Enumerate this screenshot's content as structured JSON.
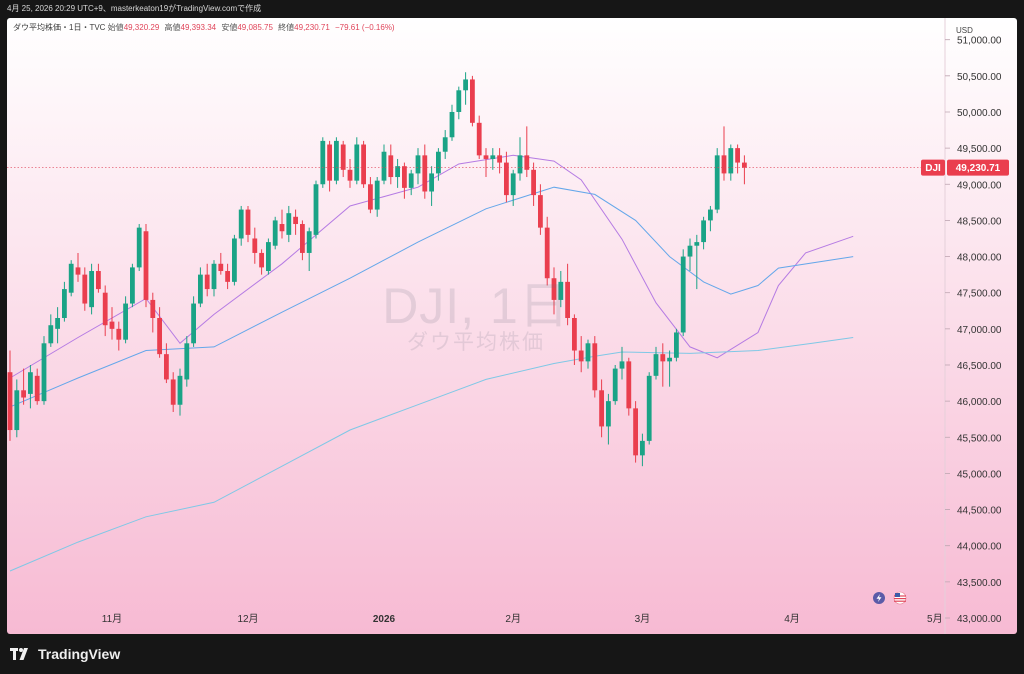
{
  "header": {
    "caption": "4月 25, 2026 20:29 UTC+9、masterkeaton19がTradingView.comで作成"
  },
  "legend": {
    "symbol": "ダウ平均株価・1日・TVC",
    "open_label": "始値",
    "open": "49,320.29",
    "high_label": "高値",
    "high": "49,393.34",
    "low_label": "安値",
    "low": "49,085.75",
    "close_label": "終値",
    "close": "49,230.71",
    "change": "−79.61 (−0.16%)"
  },
  "watermark": {
    "title": "DJI, 1日",
    "subtitle": "ダウ平均株価"
  },
  "price_tag": {
    "symbol": "DJI",
    "value": "49,230.71"
  },
  "brand": {
    "name": "TradingView"
  },
  "icons": [
    "lightning-icon",
    "us-flag-icon",
    "tradingview-logo-icon"
  ],
  "colors": {
    "up": "#1aa386",
    "down": "#ea3e4e",
    "ma_short": "#b57be3",
    "ma_mid": "#64a7ea",
    "ma_long": "#7fc8e6"
  },
  "chart_data": {
    "type": "candlestick",
    "currency": "USD",
    "y_axis": {
      "range": [
        43000,
        51300
      ],
      "ticks": [
        "43,000.00",
        "43,500.00",
        "44,000.00",
        "44,500.00",
        "45,000.00",
        "45,500.00",
        "46,000.00",
        "46,500.00",
        "47,000.00",
        "47,500.00",
        "48,000.00",
        "48,500.00",
        "49,000.00",
        "49,500.00",
        "50,000.00",
        "50,500.00",
        "51,000.00"
      ]
    },
    "x_axis": {
      "labels": [
        {
          "text": "11月",
          "index": 15
        },
        {
          "text": "12月",
          "index": 35
        },
        {
          "text": "2026",
          "index": 55
        },
        {
          "text": "2月",
          "index": 74
        },
        {
          "text": "3月",
          "index": 93
        },
        {
          "text": "4月",
          "index": 115
        },
        {
          "text": "5月",
          "index": 136
        }
      ]
    },
    "grid": false,
    "candles": [
      [
        46400,
        46700,
        45450,
        45600
      ],
      [
        45600,
        46300,
        45500,
        46150
      ],
      [
        46150,
        46450,
        45950,
        46050
      ],
      [
        46100,
        46500,
        45900,
        46400
      ],
      [
        46350,
        46450,
        45950,
        46000
      ],
      [
        46000,
        46900,
        45950,
        46800
      ],
      [
        46800,
        47200,
        46750,
        47050
      ],
      [
        47000,
        47300,
        46800,
        47150
      ],
      [
        47150,
        47650,
        47100,
        47550
      ],
      [
        47500,
        47950,
        47450,
        47900
      ],
      [
        47850,
        48050,
        47650,
        47750
      ],
      [
        47750,
        47850,
        47250,
        47350
      ],
      [
        47300,
        47900,
        47200,
        47800
      ],
      [
        47800,
        47900,
        47500,
        47550
      ],
      [
        47500,
        47600,
        46900,
        47050
      ],
      [
        47100,
        47300,
        46850,
        47000
      ],
      [
        47000,
        47100,
        46700,
        46850
      ],
      [
        46850,
        47450,
        46800,
        47350
      ],
      [
        47350,
        47900,
        47300,
        47850
      ],
      [
        47850,
        48450,
        47800,
        48400
      ],
      [
        48350,
        48450,
        47300,
        47400
      ],
      [
        47400,
        47500,
        46950,
        47150
      ],
      [
        47150,
        47300,
        46600,
        46650
      ],
      [
        46650,
        46800,
        46250,
        46300
      ],
      [
        46300,
        46400,
        45850,
        45950
      ],
      [
        45950,
        46450,
        45800,
        46350
      ],
      [
        46300,
        46900,
        46200,
        46800
      ],
      [
        46800,
        47450,
        46750,
        47350
      ],
      [
        47350,
        47850,
        47300,
        47750
      ],
      [
        47750,
        47900,
        47450,
        47550
      ],
      [
        47550,
        47950,
        47450,
        47900
      ],
      [
        47900,
        48050,
        47750,
        47800
      ],
      [
        47800,
        47900,
        47550,
        47650
      ],
      [
        47650,
        48300,
        47600,
        48250
      ],
      [
        48250,
        48700,
        48150,
        48650
      ],
      [
        48650,
        48700,
        48200,
        48300
      ],
      [
        48250,
        48400,
        47900,
        48050
      ],
      [
        48050,
        48100,
        47750,
        47850
      ],
      [
        47800,
        48250,
        47750,
        48200
      ],
      [
        48150,
        48550,
        48100,
        48500
      ],
      [
        48450,
        48650,
        48250,
        48350
      ],
      [
        48300,
        48700,
        48200,
        48600
      ],
      [
        48550,
        48650,
        48300,
        48450
      ],
      [
        48450,
        48500,
        47950,
        48050
      ],
      [
        48050,
        48400,
        47800,
        48350
      ],
      [
        48300,
        49050,
        48250,
        49000
      ],
      [
        49000,
        49650,
        48950,
        49600
      ],
      [
        49550,
        49600,
        48900,
        49050
      ],
      [
        49050,
        49650,
        49000,
        49600
      ],
      [
        49550,
        49600,
        49100,
        49200
      ],
      [
        49200,
        49350,
        48950,
        49050
      ],
      [
        49050,
        49650,
        49000,
        49550
      ],
      [
        49550,
        49600,
        48950,
        49000
      ],
      [
        49000,
        49100,
        48600,
        48650
      ],
      [
        48650,
        49100,
        48550,
        49050
      ],
      [
        49050,
        49550,
        49000,
        49450
      ],
      [
        49400,
        49550,
        49000,
        49100
      ],
      [
        49100,
        49350,
        48950,
        49250
      ],
      [
        49250,
        49300,
        48800,
        48950
      ],
      [
        48950,
        49200,
        48850,
        49150
      ],
      [
        49150,
        49500,
        49000,
        49400
      ],
      [
        49400,
        49550,
        48800,
        48900
      ],
      [
        48900,
        49250,
        48700,
        49150
      ],
      [
        49150,
        49500,
        49050,
        49450
      ],
      [
        49450,
        49750,
        49350,
        49650
      ],
      [
        49650,
        50100,
        49600,
        50000
      ],
      [
        50000,
        50350,
        49900,
        50300
      ],
      [
        50300,
        50550,
        50100,
        50450
      ],
      [
        50450,
        50500,
        49800,
        49850
      ],
      [
        49850,
        49950,
        49350,
        49400
      ],
      [
        49400,
        49500,
        49100,
        49350
      ],
      [
        49350,
        49500,
        49200,
        49400
      ],
      [
        49400,
        49500,
        49150,
        49300
      ],
      [
        49300,
        49450,
        48750,
        48850
      ],
      [
        48850,
        49200,
        48700,
        49150
      ],
      [
        49150,
        49650,
        49050,
        49400
      ],
      [
        49400,
        49800,
        49100,
        49200
      ],
      [
        49200,
        49300,
        48700,
        48850
      ],
      [
        48850,
        49000,
        48300,
        48400
      ],
      [
        48400,
        48550,
        47600,
        47700
      ],
      [
        47700,
        47850,
        47200,
        47400
      ],
      [
        47400,
        47800,
        47300,
        47650
      ],
      [
        47650,
        47900,
        47050,
        47150
      ],
      [
        47150,
        47200,
        46500,
        46700
      ],
      [
        46700,
        46900,
        46400,
        46550
      ],
      [
        46550,
        46850,
        46450,
        46800
      ],
      [
        46800,
        46900,
        46050,
        46150
      ],
      [
        46150,
        46300,
        45500,
        45650
      ],
      [
        45650,
        46100,
        45400,
        46000
      ],
      [
        46000,
        46500,
        45950,
        46450
      ],
      [
        46450,
        46750,
        46300,
        46550
      ],
      [
        46550,
        46600,
        45800,
        45900
      ],
      [
        45900,
        46000,
        45150,
        45250
      ],
      [
        45250,
        45550,
        45100,
        45450
      ],
      [
        45450,
        46400,
        45400,
        46350
      ],
      [
        46350,
        46750,
        46300,
        46650
      ],
      [
        46650,
        46800,
        46200,
        46550
      ],
      [
        46550,
        46700,
        46200,
        46600
      ],
      [
        46600,
        47000,
        46550,
        46950
      ],
      [
        46950,
        48100,
        46900,
        48000
      ],
      [
        48000,
        48250,
        47800,
        48150
      ],
      [
        48150,
        48300,
        47550,
        48200
      ],
      [
        48200,
        48550,
        48100,
        48500
      ],
      [
        48500,
        48700,
        48350,
        48650
      ],
      [
        48650,
        49500,
        48600,
        49400
      ],
      [
        49400,
        49800,
        49050,
        49150
      ],
      [
        49150,
        49550,
        49050,
        49500
      ],
      [
        49500,
        49550,
        49150,
        49300
      ],
      [
        49300,
        49400,
        49000,
        49230.71
      ]
    ],
    "moving_averages": [
      {
        "color": "#b57be3",
        "points": [
          [
            0,
            46320
          ],
          [
            10,
            46880
          ],
          [
            20,
            47420
          ],
          [
            25,
            46800
          ],
          [
            30,
            47200
          ],
          [
            40,
            47900
          ],
          [
            50,
            48700
          ],
          [
            60,
            48960
          ],
          [
            66,
            49280
          ],
          [
            74,
            49400
          ],
          [
            80,
            49320
          ],
          [
            84,
            49060
          ],
          [
            90,
            48240
          ],
          [
            95,
            47360
          ],
          [
            100,
            46750
          ],
          [
            104,
            46600
          ],
          [
            110,
            46950
          ],
          [
            113,
            47600
          ],
          [
            117,
            48050
          ],
          [
            124,
            48280
          ]
        ]
      },
      {
        "color": "#64a7ea",
        "points": [
          [
            0,
            45920
          ],
          [
            10,
            46320
          ],
          [
            20,
            46700
          ],
          [
            30,
            46750
          ],
          [
            40,
            47230
          ],
          [
            50,
            47700
          ],
          [
            60,
            48200
          ],
          [
            70,
            48660
          ],
          [
            80,
            48960
          ],
          [
            86,
            48860
          ],
          [
            92,
            48500
          ],
          [
            97,
            48000
          ],
          [
            102,
            47650
          ],
          [
            106,
            47480
          ],
          [
            110,
            47600
          ],
          [
            113,
            47840
          ],
          [
            124,
            48000
          ]
        ]
      },
      {
        "color": "#7fc8e6",
        "points": [
          [
            0,
            43650
          ],
          [
            10,
            44050
          ],
          [
            20,
            44400
          ],
          [
            30,
            44600
          ],
          [
            40,
            45100
          ],
          [
            50,
            45600
          ],
          [
            60,
            45950
          ],
          [
            70,
            46300
          ],
          [
            80,
            46520
          ],
          [
            86,
            46620
          ],
          [
            90,
            46680
          ],
          [
            100,
            46660
          ],
          [
            110,
            46700
          ],
          [
            118,
            46800
          ],
          [
            124,
            46880
          ]
        ]
      }
    ]
  }
}
